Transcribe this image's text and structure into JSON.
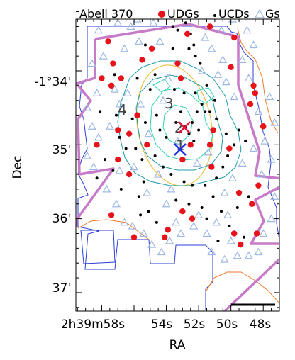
{
  "chart_data": {
    "type": "scatter",
    "title": "Abell 370",
    "xlabel": "RA",
    "ylabel": "Dec",
    "x_ticks": [
      "2h39m58s",
      "54s",
      "52s",
      "50s",
      "48s"
    ],
    "y_ticks": [
      "-1°34'",
      "35'",
      "36'",
      "37'"
    ],
    "x_range_s": [
      59.6,
      47.0
    ],
    "y_range_arcmin": [
      -33.3,
      -37.25
    ],
    "grid": false,
    "legend_position": "top",
    "legend": [
      {
        "name": "UDGs",
        "marker": "circle",
        "color": "#e8121a"
      },
      {
        "name": "UCDs",
        "marker": "dot",
        "color": "#000000"
      },
      {
        "name": "Gs",
        "marker": "triangle",
        "color": "#9db8e4"
      }
    ],
    "region_labels": [
      "1",
      "2",
      "3",
      "4"
    ],
    "colors": {
      "footprint": "#c77ac8",
      "outer_contour": "#2b3fd6",
      "orange_contour": "#f07a2a",
      "mid_contour": "#1a9ca8",
      "inner_contour": "#2fd0b0",
      "ellipse": "#f2c040",
      "cross_red": "#e8123a",
      "cross_blue": "#1f2fe0"
    },
    "udgs": [
      [
        57.6,
        -33.6
      ],
      [
        52.7,
        -33.5
      ],
      [
        51.3,
        -33.4
      ],
      [
        49.8,
        -33.55
      ],
      [
        57.3,
        -33.9
      ],
      [
        56.8,
        -34.1
      ],
      [
        57.4,
        -34.2
      ],
      [
        58.0,
        -34.1
      ],
      [
        55.5,
        -33.85
      ],
      [
        54.9,
        -33.7
      ],
      [
        53.3,
        -33.9
      ],
      [
        50.0,
        -33.95
      ],
      [
        53.1,
        -34.1
      ],
      [
        48.6,
        -34.2
      ],
      [
        48.5,
        -34.3
      ],
      [
        48.8,
        -34.45
      ],
      [
        55.8,
        -34.6
      ],
      [
        48.0,
        -34.75
      ],
      [
        57.0,
        -34.8
      ],
      [
        56.3,
        -34.85
      ],
      [
        51.1,
        -34.8
      ],
      [
        55.2,
        -35.0
      ],
      [
        52.5,
        -35.0
      ],
      [
        50.1,
        -35.05
      ],
      [
        58.3,
        -35.0
      ],
      [
        57.0,
        -35.2
      ],
      [
        53.0,
        -35.2
      ],
      [
        51.2,
        -35.3
      ],
      [
        56.3,
        -35.4
      ],
      [
        48.3,
        -35.55
      ],
      [
        49.5,
        -35.65
      ],
      [
        48.7,
        -35.8
      ],
      [
        57.4,
        -35.95
      ],
      [
        53.0,
        -35.9
      ],
      [
        52.4,
        -36.0
      ],
      [
        49.8,
        -36.2
      ],
      [
        53.9,
        -36.15
      ],
      [
        54.1,
        -36.25
      ],
      [
        48.4,
        -36.2
      ],
      [
        49.4,
        -36.35
      ],
      [
        56.0,
        -36.25
      ],
      [
        51.3,
        -35.0
      ]
    ],
    "ucds": [
      [
        53.6,
        -33.4
      ],
      [
        53.3,
        -33.45
      ],
      [
        52.8,
        -33.35
      ],
      [
        52.5,
        -33.5
      ],
      [
        52.3,
        -33.65
      ],
      [
        52.6,
        -33.7
      ],
      [
        52.2,
        -33.8
      ],
      [
        51.9,
        -33.9
      ],
      [
        53.6,
        -33.7
      ],
      [
        55.3,
        -33.65
      ],
      [
        57.2,
        -34.05
      ],
      [
        55.8,
        -34.1
      ],
      [
        54.7,
        -34.05
      ],
      [
        55.0,
        -34.25
      ],
      [
        53.5,
        -34.25
      ],
      [
        52.9,
        -34.3
      ],
      [
        52.2,
        -34.3
      ],
      [
        51.8,
        -34.45
      ],
      [
        51.6,
        -34.55
      ],
      [
        51.3,
        -34.55
      ],
      [
        50.9,
        -34.65
      ],
      [
        51.0,
        -34.4
      ],
      [
        51.5,
        -34.2
      ],
      [
        52.1,
        -34.55
      ],
      [
        52.4,
        -34.7
      ],
      [
        52.8,
        -34.75
      ],
      [
        52.6,
        -34.85
      ],
      [
        52.3,
        -34.95
      ],
      [
        52.0,
        -34.8
      ],
      [
        53.1,
        -34.55
      ],
      [
        53.4,
        -34.7
      ],
      [
        54.0,
        -34.9
      ],
      [
        54.4,
        -34.8
      ],
      [
        54.6,
        -34.6
      ],
      [
        55.3,
        -34.7
      ],
      [
        56.1,
        -34.65
      ],
      [
        56.6,
        -34.55
      ],
      [
        57.1,
        -34.6
      ],
      [
        56.9,
        -34.9
      ],
      [
        56.5,
        -35.05
      ],
      [
        55.9,
        -35.05
      ],
      [
        55.5,
        -35.2
      ],
      [
        54.7,
        -35.15
      ],
      [
        54.2,
        -35.3
      ],
      [
        53.7,
        -35.4
      ],
      [
        52.9,
        -35.5
      ],
      [
        52.4,
        -35.55
      ],
      [
        51.6,
        -35.55
      ],
      [
        50.9,
        -35.45
      ],
      [
        50.5,
        -35.3
      ],
      [
        50.2,
        -35.15
      ],
      [
        49.8,
        -35.0
      ],
      [
        49.5,
        -34.8
      ],
      [
        49.1,
        -34.95
      ],
      [
        50.3,
        -34.85
      ],
      [
        58.1,
        -34.55
      ],
      [
        57.8,
        -35.2
      ],
      [
        57.3,
        -35.35
      ],
      [
        58.3,
        -35.45
      ],
      [
        56.8,
        -35.6
      ],
      [
        55.7,
        -35.7
      ],
      [
        55.1,
        -35.9
      ],
      [
        54.6,
        -36.05
      ],
      [
        55.6,
        -35.95
      ],
      [
        53.4,
        -35.75
      ],
      [
        52.6,
        -35.8
      ],
      [
        51.8,
        -35.85
      ],
      [
        51.1,
        -35.7
      ],
      [
        50.6,
        -35.9
      ],
      [
        50.1,
        -36.1
      ],
      [
        49.6,
        -35.85
      ],
      [
        48.9,
        -35.7
      ],
      [
        49.2,
        -36.25
      ],
      [
        50.8,
        -36.3
      ],
      [
        51.5,
        -36.0
      ],
      [
        55.4,
        -35.5
      ]
    ],
    "gs": [
      [
        58.2,
        -33.45
      ],
      [
        57.0,
        -33.35
      ],
      [
        56.2,
        -33.4
      ],
      [
        55.7,
        -33.6
      ],
      [
        56.6,
        -33.7
      ],
      [
        57.9,
        -33.8
      ],
      [
        58.6,
        -33.9
      ],
      [
        57.2,
        -34.25
      ],
      [
        58.3,
        -34.3
      ],
      [
        58.9,
        -34.5
      ],
      [
        58.6,
        -34.75
      ],
      [
        58.2,
        -34.9
      ],
      [
        58.9,
        -35.15
      ],
      [
        58.5,
        -35.3
      ],
      [
        57.7,
        -35.6
      ],
      [
        57.1,
        -35.8
      ],
      [
        56.6,
        -36.05
      ],
      [
        56.1,
        -36.1
      ],
      [
        55.4,
        -36.2
      ],
      [
        54.9,
        -36.35
      ],
      [
        54.3,
        -36.45
      ],
      [
        53.8,
        -36.3
      ],
      [
        53.1,
        -36.2
      ],
      [
        52.3,
        -36.1
      ],
      [
        51.5,
        -36.2
      ],
      [
        50.9,
        -36.05
      ],
      [
        50.2,
        -35.95
      ],
      [
        49.6,
        -36.5
      ],
      [
        48.9,
        -36.5
      ],
      [
        48.3,
        -36.45
      ],
      [
        48.0,
        -36.2
      ],
      [
        47.5,
        -36.0
      ],
      [
        47.3,
        -35.7
      ],
      [
        48.1,
        -35.4
      ],
      [
        47.5,
        -35.2
      ],
      [
        47.9,
        -34.95
      ],
      [
        47.3,
        -34.7
      ],
      [
        48.3,
        -34.55
      ],
      [
        47.6,
        -34.35
      ],
      [
        48.9,
        -34.1
      ],
      [
        49.3,
        -33.85
      ],
      [
        48.6,
        -33.65
      ],
      [
        49.0,
        -33.45
      ],
      [
        49.9,
        -33.3
      ],
      [
        50.6,
        -33.45
      ],
      [
        51.2,
        -33.7
      ],
      [
        50.5,
        -33.85
      ],
      [
        51.6,
        -33.55
      ],
      [
        54.4,
        -33.6
      ],
      [
        54.8,
        -33.35
      ],
      [
        55.8,
        -33.3
      ],
      [
        56.9,
        -34.45
      ],
      [
        56.4,
        -34.3
      ],
      [
        55.6,
        -34.45
      ],
      [
        55.1,
        -34.85
      ],
      [
        54.5,
        -35.4
      ],
      [
        53.7,
        -35.6
      ],
      [
        53.3,
        -34.95
      ],
      [
        52.1,
        -35.25
      ],
      [
        51.4,
        -35.1
      ],
      [
        50.4,
        -35.65
      ],
      [
        49.9,
        -35.45
      ],
      [
        49.3,
        -35.25
      ],
      [
        48.6,
        -35.05
      ],
      [
        49.8,
        -34.35
      ],
      [
        50.3,
        -34.15
      ],
      [
        50.8,
        -34.05
      ],
      [
        51.8,
        -34.0
      ],
      [
        53.9,
        -34.1
      ],
      [
        54.2,
        -34.4
      ],
      [
        56.0,
        -35.3
      ],
      [
        56.9,
        -35.35
      ],
      [
        57.5,
        -34.75
      ],
      [
        55.2,
        -35.65
      ],
      [
        54.0,
        -35.8
      ],
      [
        52.0,
        -35.95
      ],
      [
        51.2,
        -36.45
      ],
      [
        50.4,
        -36.55
      ],
      [
        50.0,
        -36.3
      ],
      [
        53.4,
        -36.05
      ]
    ]
  }
}
